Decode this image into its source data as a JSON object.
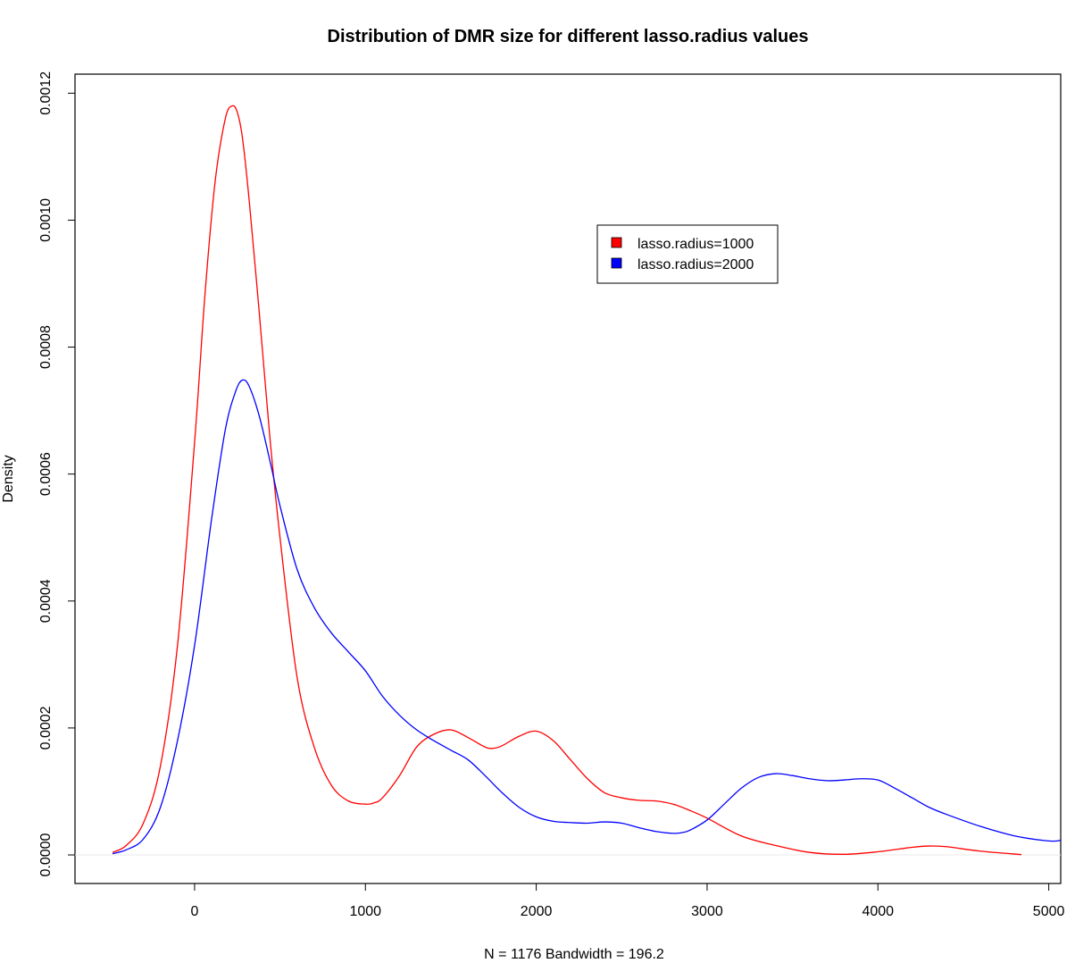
{
  "chart_data": {
    "type": "line",
    "title": "Distribution of DMR size for different lasso.radius values",
    "xlabel": "N = 1176   Bandwidth = 196.2",
    "ylabel": "Density",
    "xlim": [
      -700,
      5070
    ],
    "ylim": [
      -4.5e-05,
      0.00123
    ],
    "x_ticks": [
      0,
      1000,
      2000,
      3000,
      4000,
      5000
    ],
    "x_tick_labels": [
      "0",
      "1000",
      "2000",
      "3000",
      "4000",
      "5000"
    ],
    "y_ticks": [
      0,
      0.0002,
      0.0004,
      0.0006,
      0.0008,
      0.001,
      0.0012
    ],
    "y_tick_labels": [
      "0.0000",
      "0.0002",
      "0.0004",
      "0.0006",
      "0.0008",
      "0.0010",
      "0.0012"
    ],
    "grid": false,
    "zero_line": true,
    "legend": {
      "position": "top-right",
      "entries": [
        "lasso.radius=1000",
        "lasso.radius=2000"
      ]
    },
    "series": [
      {
        "name": "lasso.radius=1000",
        "color": "#ff0000",
        "x": [
          -480,
          -400,
          -300,
          -200,
          -100,
          0,
          60,
          120,
          180,
          220,
          250,
          280,
          320,
          380,
          440,
          500,
          600,
          700,
          800,
          900,
          1000,
          1050,
          1100,
          1200,
          1300,
          1400,
          1500,
          1600,
          1700,
          1750,
          1800,
          1900,
          2000,
          2100,
          2200,
          2300,
          2400,
          2500,
          2600,
          2700,
          2800,
          2900,
          3000,
          3200,
          3400,
          3600,
          3800,
          4000,
          4200,
          4300,
          4400,
          4600,
          4840
        ],
        "y": [
          4e-06,
          1.5e-05,
          5e-05,
          0.00014,
          0.00033,
          0.00065,
          0.00088,
          0.00106,
          0.00116,
          0.00118,
          0.00117,
          0.00113,
          0.00103,
          0.00085,
          0.00066,
          0.0005,
          0.00028,
          0.00017,
          0.00011,
          8.5e-05,
          8e-05,
          8.2e-05,
          9e-05,
          0.000125,
          0.00017,
          0.00019,
          0.000197,
          0.000185,
          0.00017,
          0.000168,
          0.000172,
          0.000187,
          0.000195,
          0.00018,
          0.00015,
          0.00012,
          9.8e-05,
          9e-05,
          8.6e-05,
          8.5e-05,
          8e-05,
          7e-05,
          5.8e-05,
          3e-05,
          1.5e-05,
          4e-06,
          1e-06,
          5e-06,
          1.2e-05,
          1.4e-05,
          1.3e-05,
          6e-06,
          5e-07
        ]
      },
      {
        "name": "lasso.radius=2000",
        "color": "#0000ff",
        "x": [
          -480,
          -400,
          -300,
          -200,
          -100,
          0,
          100,
          180,
          240,
          280,
          320,
          380,
          450,
          500,
          600,
          700,
          800,
          900,
          1000,
          1100,
          1200,
          1300,
          1400,
          1500,
          1600,
          1700,
          1800,
          1900,
          2000,
          2100,
          2200,
          2300,
          2400,
          2500,
          2600,
          2700,
          2800,
          2850,
          2900,
          3000,
          3100,
          3200,
          3300,
          3400,
          3500,
          3600,
          3700,
          3800,
          3900,
          4000,
          4100,
          4200,
          4300,
          4400,
          4600,
          4800,
          5000,
          5070
        ],
        "y": [
          2e-06,
          8e-06,
          2.5e-05,
          7.5e-05,
          0.00018,
          0.00033,
          0.00053,
          0.00067,
          0.00073,
          0.000748,
          0.000738,
          0.00069,
          0.00061,
          0.00055,
          0.00045,
          0.00039,
          0.00035,
          0.00032,
          0.00029,
          0.00025,
          0.00022,
          0.000197,
          0.00018,
          0.000165,
          0.00015,
          0.000125,
          9.8e-05,
          7.5e-05,
          6e-05,
          5.3e-05,
          5.1e-05,
          5e-05,
          5.2e-05,
          5e-05,
          4.3e-05,
          3.7e-05,
          3.4e-05,
          3.5e-05,
          3.9e-05,
          5.5e-05,
          8e-05,
          0.000105,
          0.000122,
          0.000128,
          0.000125,
          0.00012,
          0.000117,
          0.000118,
          0.00012,
          0.000118,
          0.000105,
          9e-05,
          7.5e-05,
          6.4e-05,
          4.5e-05,
          3e-05,
          2.2e-05,
          2.3e-05
        ]
      }
    ]
  }
}
